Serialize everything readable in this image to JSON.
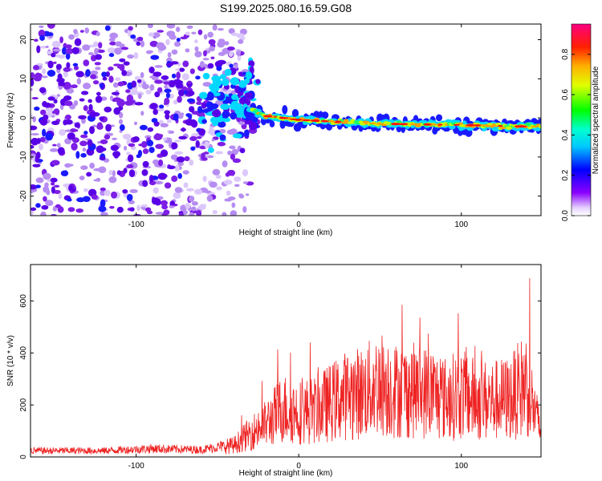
{
  "title": "S199.2025.080.16.59.G08",
  "chart_data": [
    {
      "type": "heatmap",
      "xlabel": "Height of straight line (km)",
      "ylabel": "Frequency (Hz)",
      "xlim": [
        -165,
        149
      ],
      "ylim": [
        -25,
        24
      ],
      "x_ticks": [
        -100,
        0,
        100
      ],
      "y_ticks": [
        -20,
        -10,
        0,
        10,
        20
      ],
      "grid": false,
      "colorbar": {
        "label": "Normalized spectral amplitude",
        "range": [
          0,
          0.95
        ],
        "ticks": [
          0.0,
          0.2,
          0.4,
          0.6,
          0.8
        ],
        "colormap": [
          "#ffffff",
          "#e0d0ff",
          "#8000ff",
          "#0000ff",
          "#00ffff",
          "#00ff00",
          "#ffff00",
          "#ff8000",
          "#ff0000",
          "#ff0080"
        ]
      },
      "ridge": {
        "description": "bright ridge near 0 Hz",
        "points": [
          [
            -30,
            2
          ],
          [
            -20,
            0.5
          ],
          [
            0,
            -0.5
          ],
          [
            50,
            -1.5
          ],
          [
            100,
            -1.8
          ],
          [
            140,
            -2.2
          ]
        ]
      }
    },
    {
      "type": "line",
      "xlabel": "Height of straight line (km)",
      "ylabel": "SNR (10 * v/v)",
      "xlim": [
        -165,
        149
      ],
      "ylim": [
        0,
        740
      ],
      "x_ticks": [
        -100,
        0,
        100
      ],
      "y_ticks": [
        0,
        200,
        400,
        600
      ],
      "grid": false,
      "color": "#ee2222",
      "envelope": {
        "x": [
          -165,
          -120,
          -90,
          -60,
          -40,
          -30,
          -20,
          -10,
          0,
          10,
          20,
          30,
          40,
          50,
          60,
          70,
          80,
          90,
          100,
          110,
          120,
          130,
          140,
          149
        ],
        "y": [
          30,
          30,
          40,
          35,
          60,
          120,
          170,
          250,
          230,
          240,
          280,
          320,
          330,
          380,
          340,
          340,
          330,
          300,
          320,
          290,
          290,
          300,
          380,
          120
        ]
      }
    }
  ]
}
